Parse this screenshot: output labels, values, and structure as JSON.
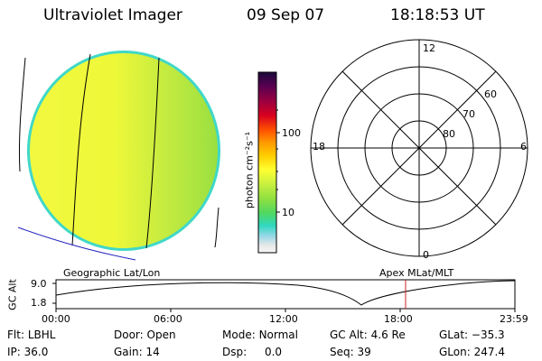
{
  "header": {
    "instrument": "Ultraviolet Imager",
    "date": "09 Sep 07",
    "time": "18:18:53 UT"
  },
  "colorbar": {
    "unit_label": "photon cm⁻²s⁻¹",
    "tick_labels": [
      "100",
      "10"
    ],
    "colors": [
      "#1a0a3a",
      "#5a0050",
      "#9a0040",
      "#d80020",
      "#ff5000",
      "#ff9a00",
      "#ffcc00",
      "#ffff30",
      "#c8f040",
      "#90e040",
      "#50d860",
      "#30d8c0",
      "#9ad8e8",
      "#e8e8e8",
      "#f6f6f6"
    ]
  },
  "polar_plot": {
    "lat_labels": [
      "60",
      "70",
      "80"
    ],
    "mlt_labels": [
      "12",
      "18",
      "6",
      "0"
    ]
  },
  "timeline": {
    "left_label": "Geographic Lat/Lon",
    "right_label": "Apex MLat/MLT",
    "axis_title": "GC Alt",
    "y_ticks": [
      "9.0",
      "1.8"
    ],
    "x_ticks": [
      "00:00",
      "06:00",
      "12:00",
      "18:00",
      "23:59"
    ],
    "current_time_marker_color": "#cc2222"
  },
  "status": {
    "row1": [
      {
        "label": "Flt:",
        "value": "LBHL"
      },
      {
        "label": "Door:",
        "value": "Open"
      },
      {
        "label": "Mode:",
        "value": "Normal"
      },
      {
        "label": "GC Alt:",
        "value": "4.6 Re"
      },
      {
        "label": "GLat:",
        "value": "−35.3"
      }
    ],
    "row2": [
      {
        "label": "IP:",
        "value": "36.0"
      },
      {
        "label": "Gain:",
        "value": "14"
      },
      {
        "label": "Dsp:",
        "value": "0.0"
      },
      {
        "label": "Seq:",
        "value": "39"
      },
      {
        "label": "GLon:",
        "value": "247.4"
      }
    ]
  }
}
